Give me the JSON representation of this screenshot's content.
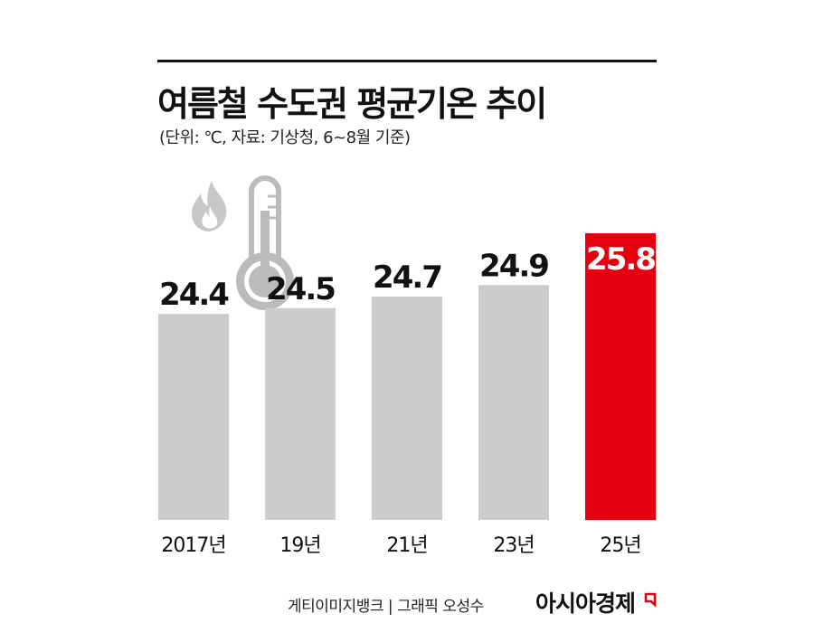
{
  "header": {
    "title": "여름철 수도권 평균기온 추이",
    "subtitle": "(단위: ℃, 자료: 기상청, 6~8월 기준)"
  },
  "icons": [
    "flame-icon",
    "thermometer-icon"
  ],
  "colors": {
    "bar_default": "#cccccc",
    "bar_highlight": "#e3000f",
    "highlight_label": "#ffffff",
    "text": "#111111"
  },
  "chart_data": {
    "type": "bar",
    "title": "여름철 수도권 평균기온 추이",
    "subtitle": "(단위: ℃, 자료: 기상청, 6~8월 기준)",
    "categories": [
      "2017년",
      "19년",
      "21년",
      "23년",
      "25년"
    ],
    "values": [
      24.4,
      24.5,
      24.7,
      24.9,
      25.8
    ],
    "value_labels": [
      "24.4",
      "24.5",
      "24.7",
      "24.9",
      "25.8"
    ],
    "highlight_index": 4,
    "ylim": [
      20.82,
      25.8
    ],
    "grid": false,
    "legend": "none",
    "xlabel": "",
    "ylabel": ""
  },
  "footer": {
    "credit": "게티이미지뱅크 | 그래픽 오성수",
    "brand": "아시아경제"
  }
}
